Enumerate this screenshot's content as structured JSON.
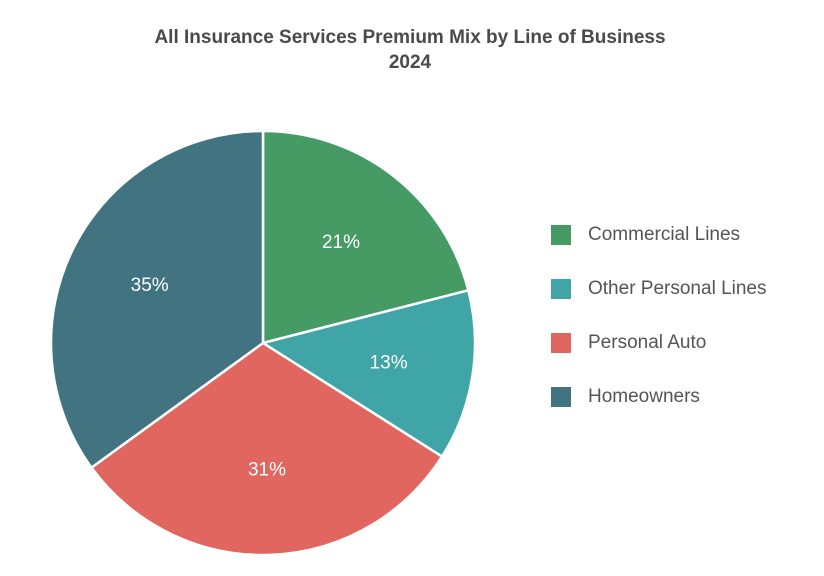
{
  "chart_data": {
    "type": "pie",
    "title": "All Insurance Services Premium Mix by Line of Business",
    "subtitle": "2024",
    "categories": [
      "Commercial Lines",
      "Other Personal Lines",
      "Personal Auto",
      "Homeowners"
    ],
    "values": [
      21,
      13,
      31,
      35
    ],
    "labels": [
      "21%",
      "13%",
      "31%",
      "35%"
    ],
    "colors": [
      "#459b63",
      "#3fa5a6",
      "#e1665f",
      "#427380"
    ],
    "legend_position": "right",
    "start_angle_deg": 0,
    "direction": "clockwise"
  }
}
